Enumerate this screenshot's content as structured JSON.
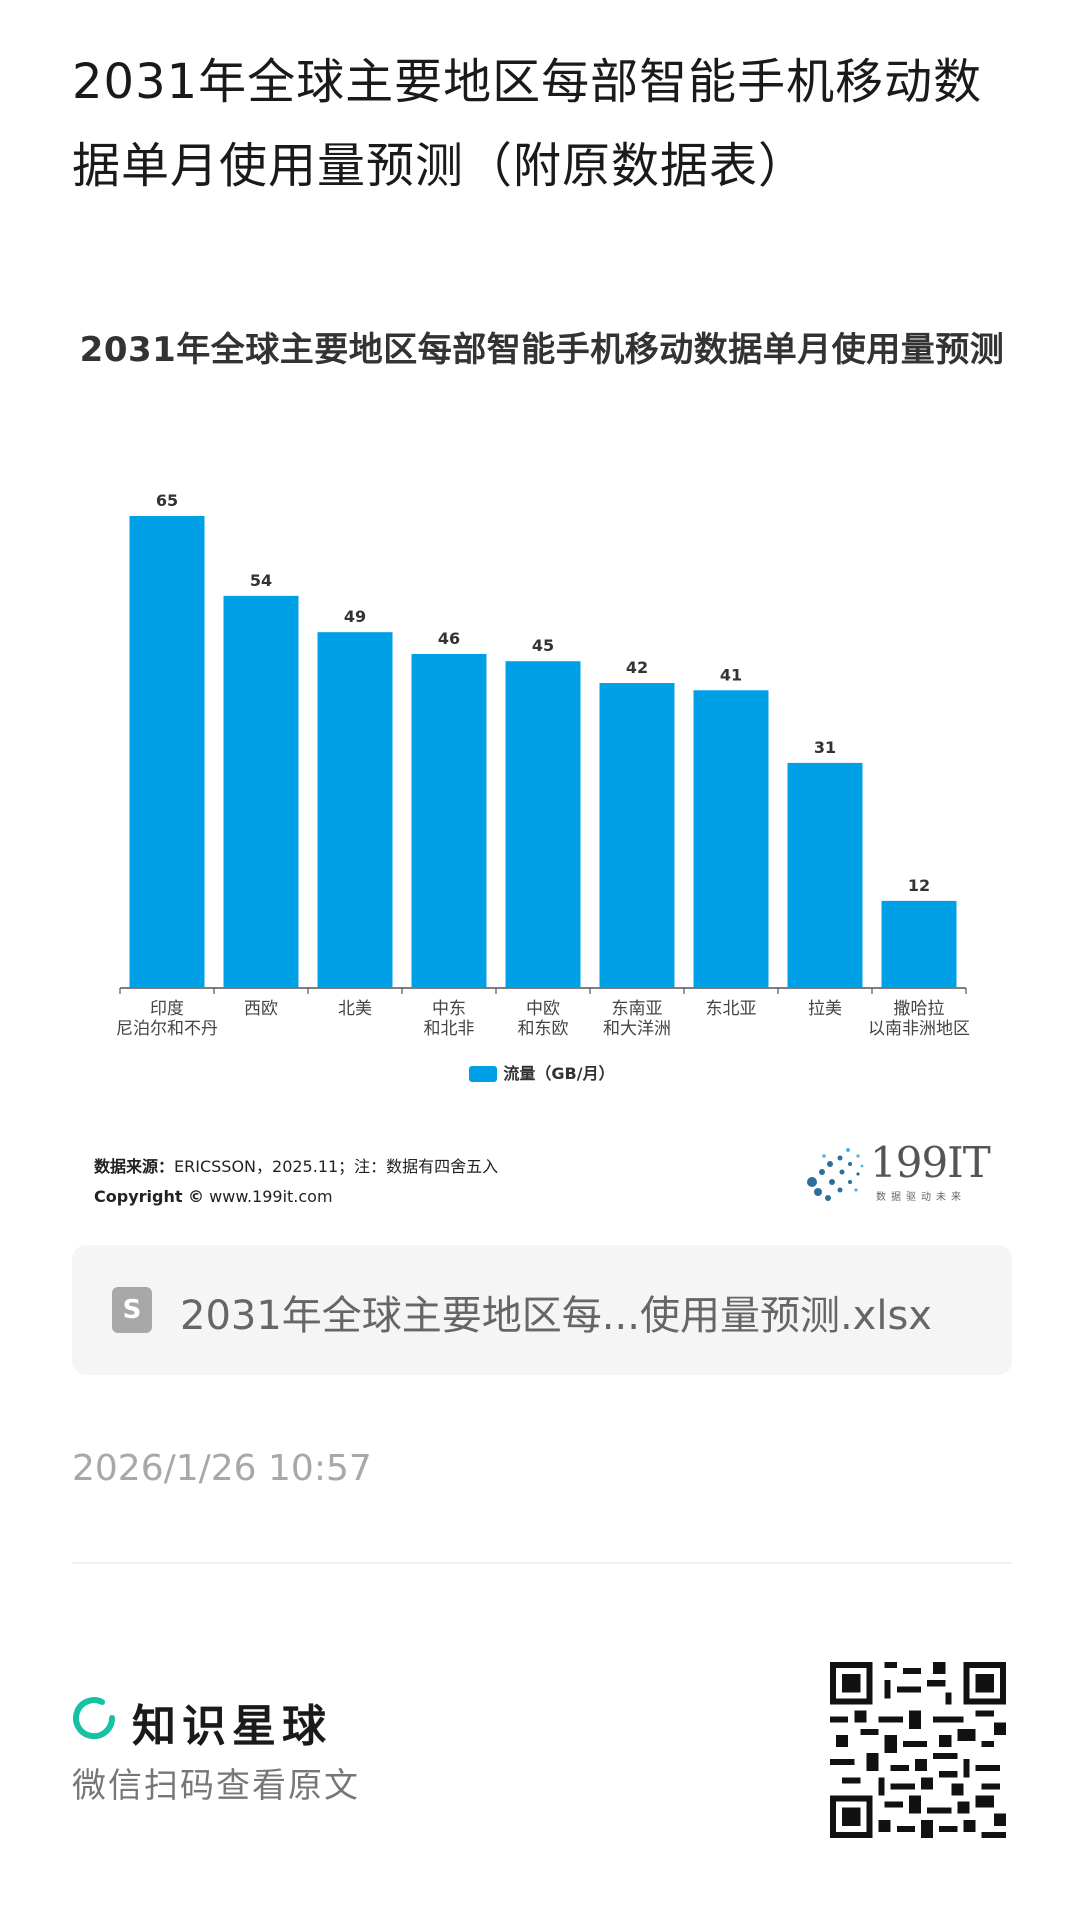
{
  "page": {
    "title": "2031年全球主要地区每部智能手机移动数据单月使用量预测（附原数据表）",
    "timestamp": "2026/1/26 10:57"
  },
  "chart_data": {
    "type": "bar",
    "title": "2031年全球主要地区每部智能手机移动数据单月使用量预测",
    "categories": [
      "印度\n尼泊尔和不丹",
      "西欧",
      "北美",
      "中东\n和北非",
      "中欧\n和东欧",
      "东南亚\n和大洋洲",
      "东北亚",
      "拉美",
      "撒哈拉\n以南非洲地区"
    ],
    "series": [
      {
        "name": "流量（GB/月）",
        "values": [
          65,
          54,
          49,
          46,
          45,
          42,
          41,
          31,
          12
        ],
        "color": "#00a0e6"
      }
    ],
    "xlabel": "",
    "ylabel": "",
    "ylim": [
      0,
      65
    ],
    "grid": false,
    "legend": "bottom-center",
    "data_labels": true
  },
  "source": {
    "label": "数据来源：",
    "text": "ERICSSON，2025.11；注：数据有四舍五入",
    "copyright_label": "Copyright ©",
    "copyright_url": "www.199it.com"
  },
  "logo": {
    "name": "199IT",
    "slogan": "数据驱动未来"
  },
  "file": {
    "icon": "spreadsheet-icon",
    "icon_letter": "S",
    "name": "2031年全球主要地区每...使用量预测.xlsx"
  },
  "footer": {
    "brand_name": "知识星球",
    "brand_icon": "planet-ring-icon",
    "brand_color": "#16c2a3",
    "scan_hint": "微信扫码查看原文"
  }
}
